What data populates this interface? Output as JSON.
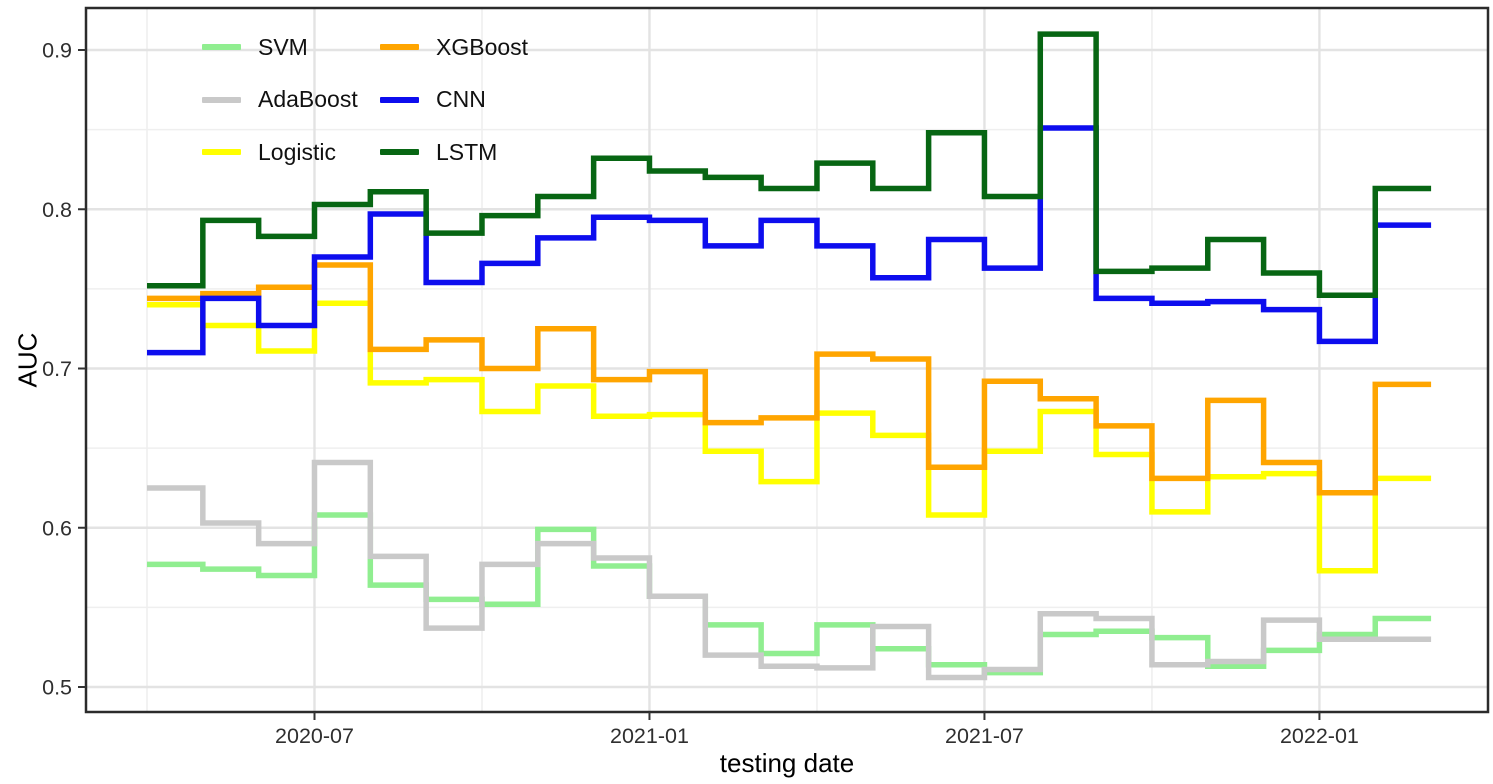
{
  "chart_data": {
    "type": "line",
    "subtype": "step",
    "title": "",
    "xlabel": "testing date",
    "ylabel": "AUC",
    "ylim": [
      0.484,
      0.926
    ],
    "grid": "on",
    "legend_position": "top-left-inside",
    "y_ticks": [
      0.5,
      0.6,
      0.7,
      0.8,
      0.9
    ],
    "y_tick_labels": [
      "0.5",
      "0.6",
      "0.7",
      "0.8",
      "0.9"
    ],
    "y_minor_ticks": [
      0.55,
      0.65,
      0.75,
      0.85
    ],
    "x_ticks": [
      {
        "label": "2020-07",
        "month_index": 3
      },
      {
        "label": "2021-01",
        "month_index": 9
      },
      {
        "label": "2021-07",
        "month_index": 15
      },
      {
        "label": "2022-01",
        "month_index": 21
      }
    ],
    "x_minor_month_index": [
      0,
      6,
      12,
      18
    ],
    "months": [
      "2020-04",
      "2020-05",
      "2020-06",
      "2020-07",
      "2020-08",
      "2020-09",
      "2020-10",
      "2020-11",
      "2020-12",
      "2021-01",
      "2021-02",
      "2021-03",
      "2021-04",
      "2021-05",
      "2021-06",
      "2021-07",
      "2021-08",
      "2021-09",
      "2021-10",
      "2021-11",
      "2021-12",
      "2022-01",
      "2022-02"
    ],
    "series": [
      {
        "name": "SVM",
        "color": "#90EE90",
        "values": [
          0.577,
          0.574,
          0.57,
          0.608,
          0.564,
          0.555,
          0.552,
          0.599,
          0.576,
          0.557,
          0.539,
          0.521,
          0.539,
          0.524,
          0.514,
          0.509,
          0.533,
          0.535,
          0.531,
          0.513,
          0.523,
          0.533,
          0.543
        ]
      },
      {
        "name": "AdaBoost",
        "color": "#C9C9C9",
        "values": [
          0.625,
          0.603,
          0.59,
          0.641,
          0.582,
          0.537,
          0.577,
          0.59,
          0.581,
          0.557,
          0.52,
          0.513,
          0.512,
          0.538,
          0.506,
          0.511,
          0.546,
          0.543,
          0.514,
          0.516,
          0.542,
          0.53,
          0.53
        ]
      },
      {
        "name": "Logistic",
        "color": "#FFFF00",
        "values": [
          0.74,
          0.727,
          0.711,
          0.741,
          0.691,
          0.693,
          0.673,
          0.689,
          0.67,
          0.671,
          0.648,
          0.629,
          0.672,
          0.658,
          0.608,
          0.648,
          0.673,
          0.646,
          0.61,
          0.632,
          0.634,
          0.573,
          0.631
        ]
      },
      {
        "name": "XGBoost",
        "color": "#FFA500",
        "values": [
          0.744,
          0.747,
          0.751,
          0.765,
          0.712,
          0.718,
          0.7,
          0.725,
          0.693,
          0.698,
          0.666,
          0.669,
          0.709,
          0.706,
          0.638,
          0.692,
          0.681,
          0.664,
          0.631,
          0.68,
          0.641,
          0.622,
          0.69
        ]
      },
      {
        "name": "CNN",
        "color": "#0D0DEE",
        "values": [
          0.71,
          0.744,
          0.727,
          0.77,
          0.797,
          0.754,
          0.766,
          0.782,
          0.795,
          0.793,
          0.777,
          0.793,
          0.777,
          0.757,
          0.781,
          0.763,
          0.851,
          0.744,
          0.741,
          0.742,
          0.737,
          0.717,
          0.79
        ]
      },
      {
        "name": "LSTM",
        "color": "#076613",
        "values": [
          0.752,
          0.793,
          0.783,
          0.803,
          0.811,
          0.785,
          0.796,
          0.808,
          0.832,
          0.824,
          0.82,
          0.813,
          0.829,
          0.813,
          0.848,
          0.808,
          0.91,
          0.761,
          0.763,
          0.781,
          0.76,
          0.746,
          0.813
        ]
      }
    ],
    "legend_columns": [
      [
        0,
        1,
        2
      ],
      [
        3,
        4,
        5
      ]
    ],
    "style": {
      "panel_border_color": "#2b2b2b",
      "grid_major_color": "#E3E3E3",
      "grid_minor_color": "#EFEFEF",
      "tick_color": "#333333",
      "tick_label_color": "#2f2f2f",
      "line_width": 5.5
    }
  }
}
